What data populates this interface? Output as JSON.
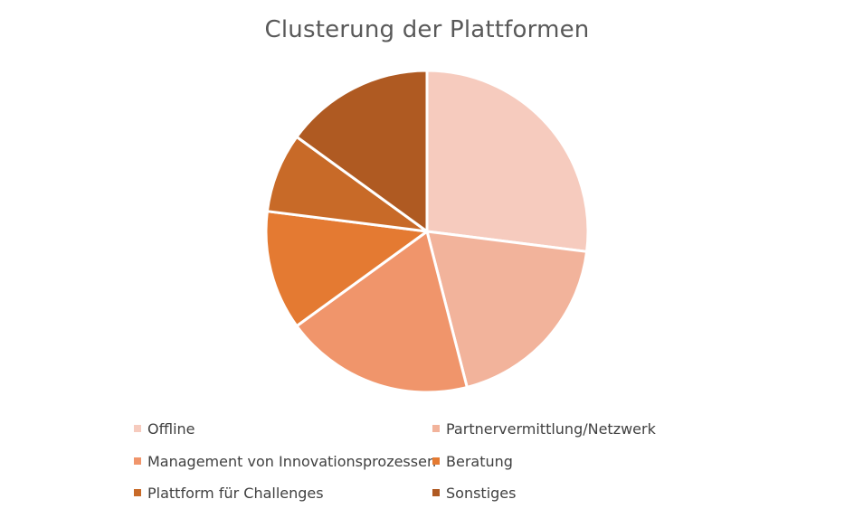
{
  "chart_data": {
    "type": "pie",
    "title": "Clusterung der Plattformen",
    "categories": [
      "Offline",
      "Partnervermittlung/Netzwerk",
      "Management von Innovationsprozessen",
      "Beratung",
      "Plattform für Challenges",
      "Sonstiges"
    ],
    "values": [
      27,
      19,
      19,
      12,
      8,
      15
    ],
    "colors": [
      "#F6CBBE",
      "#F2B39B",
      "#F0956B",
      "#E47A32",
      "#C86A28",
      "#AF5A22"
    ],
    "legend_position": "bottom"
  }
}
